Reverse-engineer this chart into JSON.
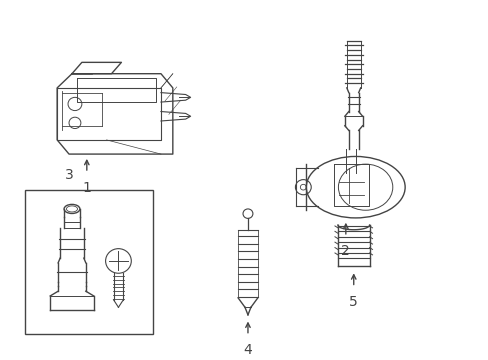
{
  "bg_color": "#ffffff",
  "line_color": "#444444",
  "lw": 1.0,
  "figsize": [
    4.89,
    3.6
  ],
  "dpi": 100
}
